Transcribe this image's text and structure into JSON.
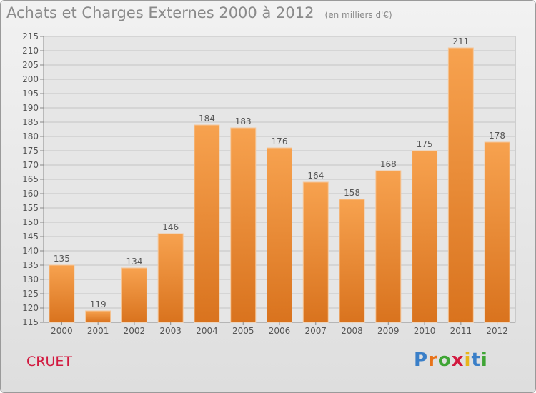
{
  "header": {
    "title": "Achats et Charges Externes 2000 à 2012",
    "subtitle": "(en milliers d'€)"
  },
  "commune_label": "CRUET",
  "logo": {
    "text": "Proxiti",
    "letters": [
      "P",
      "r",
      "o",
      "x",
      "i",
      "t",
      "i"
    ],
    "colors": [
      "#3a7fc8",
      "#e8731a",
      "#3fa535",
      "#d2193f",
      "#e8b51a",
      "#3a7fc8",
      "#3fa535"
    ]
  },
  "colors": {
    "bar_top": "#f7a24f",
    "bar_bottom": "#d9731e",
    "grid": "#c4c4c4",
    "text": "#555555"
  },
  "chart_data": {
    "type": "bar",
    "categories": [
      "2000",
      "2001",
      "2002",
      "2003",
      "2004",
      "2005",
      "2006",
      "2007",
      "2008",
      "2009",
      "2010",
      "2011",
      "2012"
    ],
    "values": [
      135,
      119,
      134,
      146,
      184,
      183,
      176,
      164,
      158,
      168,
      175,
      211,
      178
    ],
    "ylim": [
      115,
      215
    ],
    "yticks": [
      115,
      120,
      125,
      130,
      135,
      140,
      145,
      150,
      155,
      160,
      165,
      170,
      175,
      180,
      185,
      190,
      195,
      200,
      205,
      210,
      215
    ],
    "grid": true,
    "xlabel": "",
    "ylabel": ""
  }
}
